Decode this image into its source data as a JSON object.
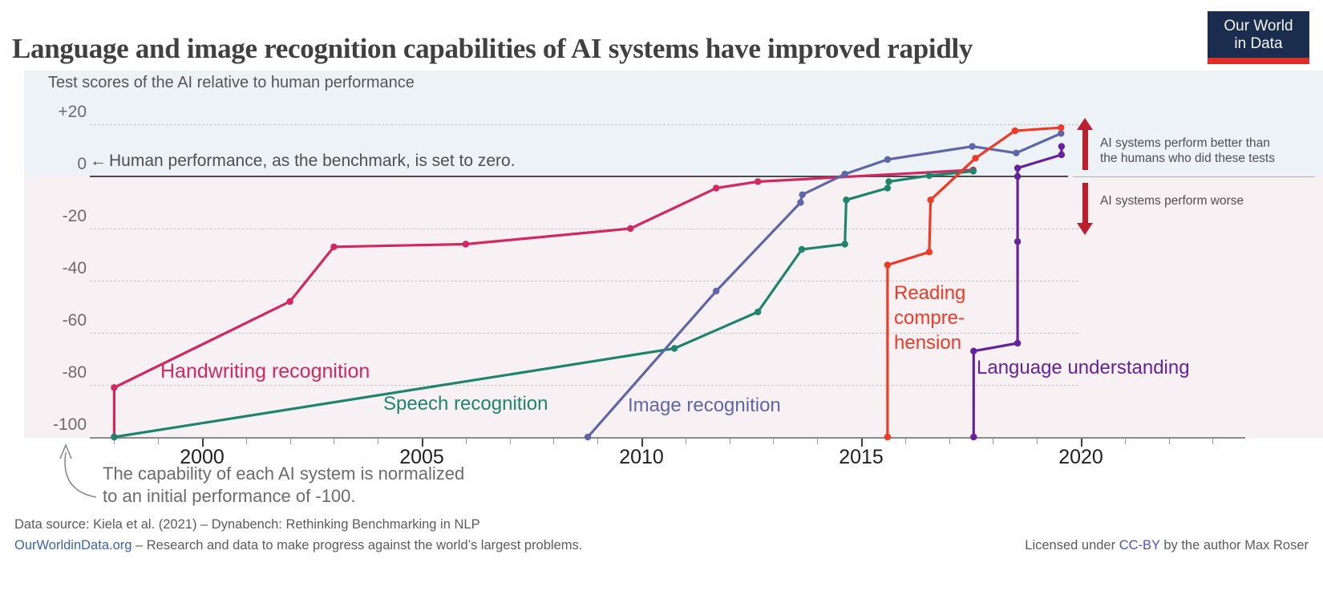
{
  "header": {
    "title": "Language and image recognition capabilities of AI systems have improved rapidly",
    "logo": {
      "line1": "Our World",
      "line2": "in Data"
    }
  },
  "subtitle": "Test scores of the AI relative to human performance",
  "axis": {
    "y_ticks": [
      {
        "label": "+20",
        "value": 20
      },
      {
        "label": "0",
        "value": 0
      },
      {
        "label": "-20",
        "value": -20
      },
      {
        "label": "-40",
        "value": -40
      },
      {
        "label": "-60",
        "value": -60
      },
      {
        "label": "-80",
        "value": -80
      },
      {
        "label": "-100",
        "value": -100
      }
    ],
    "x_ticks": [
      {
        "label": "2000",
        "year": 2000
      },
      {
        "label": "2005",
        "year": 2005
      },
      {
        "label": "2010",
        "year": 2010
      },
      {
        "label": "2015",
        "year": 2015
      },
      {
        "label": "2020",
        "year": 2020
      }
    ]
  },
  "annotations": {
    "zero_arrow": "←",
    "zero_text": "Human performance, as the benchmark, is set to zero.",
    "better_line1": "AI systems perform better than",
    "better_line2": "the humans who did these tests",
    "worse": "AI systems perform worse",
    "footnote_line1": "The capability of each AI system is normalized",
    "footnote_line2": "to an initial performance of -100."
  },
  "footer": {
    "source": "Data source: Kiela et al. (2021) – Dynabench: Rethinking Benchmarking in NLP",
    "owid_link": "OurWorldinData.org",
    "owid_rest": " – Research and data to make progress against the world’s largest problems.",
    "license_prefix": "Licensed under ",
    "license_link": "CC-BY",
    "license_suffix": " by the author Max Roser"
  },
  "colors": {
    "handwriting": "#d0295f",
    "speech": "#1e856c",
    "image": "#5e65a9",
    "reading": "#ee3b27",
    "language": "#66219c",
    "arrow_red": "#bb1f2f",
    "logo_navy": "#1a2d4f",
    "logo_red": "#dc2f27",
    "link_blue": "#3a64ad",
    "ccby_blue": "#4b51c6"
  },
  "chart_data": {
    "type": "line",
    "title": "Language and image recognition capabilities of AI systems have improved rapidly",
    "ylabel": "Test scores of the AI relative to human performance",
    "ylim": [
      -100,
      20
    ],
    "xlim": [
      1997.5,
      2023.5
    ],
    "grid": "dashed horizontal at 20, -20, -40, -60, -80; solid benchmark line at 0",
    "benchmark": {
      "value": 0,
      "label": "Human performance, as the benchmark, is set to zero."
    },
    "series": [
      {
        "name": "Handwriting recognition",
        "label": "Handwriting recognition",
        "color": "#d0295f",
        "points": [
          [
            1998.0,
            -100
          ],
          [
            1998.0,
            -81
          ],
          [
            2002.0,
            -48
          ],
          [
            2003.0,
            -27
          ],
          [
            2006.0,
            -26
          ],
          [
            2009.75,
            -20
          ],
          [
            2011.7,
            -4.5
          ],
          [
            2012.65,
            -2
          ],
          [
            2017.55,
            2.5
          ]
        ]
      },
      {
        "name": "Speech recognition",
        "label": "Speech recognition",
        "color": "#1e856c",
        "points": [
          [
            1998.0,
            -100
          ],
          [
            2010.75,
            -66
          ],
          [
            2012.65,
            -52
          ],
          [
            2013.65,
            -28
          ],
          [
            2014.63,
            -26
          ],
          [
            2014.66,
            -9
          ],
          [
            2015.6,
            -4.5
          ],
          [
            2015.63,
            -2
          ],
          [
            2016.55,
            0.3
          ],
          [
            2017.55,
            2
          ]
        ]
      },
      {
        "name": "Image recognition",
        "label": "Image recognition",
        "color": "#5e65a9",
        "points": [
          [
            2008.78,
            -100
          ],
          [
            2011.7,
            -44
          ],
          [
            2013.62,
            -10
          ],
          [
            2013.66,
            -7
          ],
          [
            2014.63,
            0.9
          ],
          [
            2015.6,
            6.5
          ],
          [
            2017.53,
            11.5
          ],
          [
            2018.53,
            9
          ],
          [
            2019.55,
            16.5
          ]
        ]
      },
      {
        "name": "Reading comprehension",
        "label": "Reading comprehension",
        "label_lines": [
          "Reading",
          "compre-",
          "hension"
        ],
        "color": "#ee3b27",
        "points": [
          [
            2015.6,
            -100
          ],
          [
            2015.6,
            -34
          ],
          [
            2016.55,
            -29
          ],
          [
            2016.58,
            -9
          ],
          [
            2017.6,
            7
          ],
          [
            2018.5,
            17.5
          ],
          [
            2019.55,
            18.7
          ]
        ]
      },
      {
        "name": "Language understanding",
        "label": "Language understanding",
        "color": "#66219c",
        "points": [
          [
            2017.56,
            -100
          ],
          [
            2017.56,
            -67
          ],
          [
            2018.56,
            -64
          ],
          [
            2018.56,
            -25
          ],
          [
            2018.56,
            0
          ],
          [
            2018.56,
            3.2
          ],
          [
            2019.56,
            8.3
          ],
          [
            2019.56,
            11.5
          ]
        ]
      }
    ]
  }
}
